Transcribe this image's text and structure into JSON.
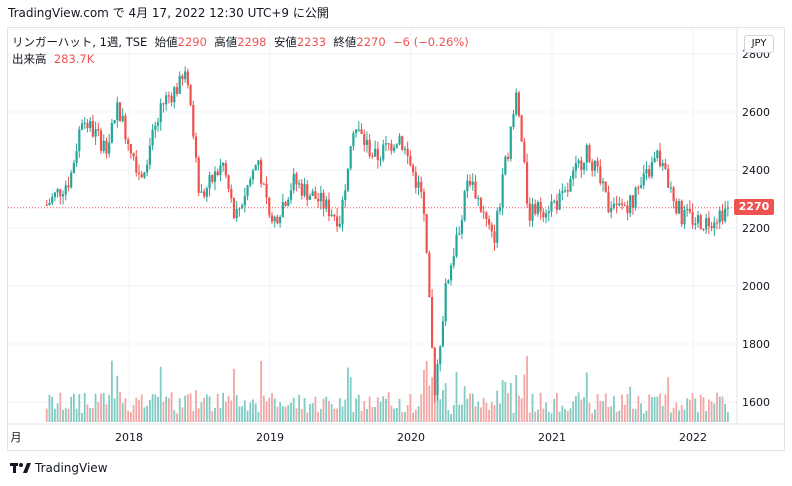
{
  "header": {
    "caption": "TradingView.com で 4月 17, 2022 12:30 UTC+9 に公開"
  },
  "legend": {
    "symbol": "リンガーハット, 1週, TSE",
    "open_label": "始値",
    "open": "2290",
    "high_label": "高値",
    "high": "2298",
    "low_label": "安値",
    "low": "2233",
    "close_label": "終値",
    "close": "2270",
    "change": "−6 (−0.26%)",
    "volume_label": "出来高",
    "volume": "283.7K"
  },
  "currency_button": "JPY",
  "last_price_tag": "2270",
  "footer": {
    "brand": "TradingView"
  },
  "colors": {
    "up": "#26a69a",
    "down": "#ef5350",
    "vol_up": "#80cbc4",
    "vol_down": "#f3a6a4",
    "grid": "#f0f3fa"
  },
  "chart_data": {
    "type": "candlestick",
    "interval": "1週",
    "y_ticks": [
      1600,
      1800,
      2000,
      2200,
      2400,
      2600,
      2800
    ],
    "ylim": [
      1510,
      2800
    ],
    "x_ticks": [
      "月",
      "2018",
      "2019",
      "2020",
      "2021",
      "2022"
    ],
    "last_close": 2270,
    "price_path": [
      {
        "t": "2017-06",
        "v": 2280
      },
      {
        "t": "2017-08",
        "v": 2370
      },
      {
        "t": "2017-09",
        "v": 2580
      },
      {
        "t": "2017-11",
        "v": 2480
      },
      {
        "t": "2017-12",
        "v": 2620
      },
      {
        "t": "2018-02",
        "v": 2380
      },
      {
        "t": "2018-04",
        "v": 2640
      },
      {
        "t": "2018-06",
        "v": 2720
      },
      {
        "t": "2018-07",
        "v": 2300
      },
      {
        "t": "2018-09",
        "v": 2420
      },
      {
        "t": "2018-10",
        "v": 2230
      },
      {
        "t": "2018-12",
        "v": 2440
      },
      {
        "t": "2019-01",
        "v": 2200
      },
      {
        "t": "2019-03",
        "v": 2360
      },
      {
        "t": "2019-05",
        "v": 2300
      },
      {
        "t": "2019-07",
        "v": 2230
      },
      {
        "t": "2019-08",
        "v": 2560
      },
      {
        "t": "2019-10",
        "v": 2440
      },
      {
        "t": "2019-12",
        "v": 2520
      },
      {
        "t": "2020-02",
        "v": 2300
      },
      {
        "t": "2020-03",
        "v": 1640
      },
      {
        "t": "2020-04",
        "v": 2000
      },
      {
        "t": "2020-06",
        "v": 2380
      },
      {
        "t": "2020-08",
        "v": 2150
      },
      {
        "t": "2020-10",
        "v": 2660
      },
      {
        "t": "2020-11",
        "v": 2250
      },
      {
        "t": "2021-02",
        "v": 2300
      },
      {
        "t": "2021-04",
        "v": 2480
      },
      {
        "t": "2021-06",
        "v": 2250
      },
      {
        "t": "2021-08",
        "v": 2300
      },
      {
        "t": "2021-10",
        "v": 2450
      },
      {
        "t": "2021-12",
        "v": 2240
      },
      {
        "t": "2022-02",
        "v": 2220
      },
      {
        "t": "2022-04",
        "v": 2270
      }
    ]
  }
}
